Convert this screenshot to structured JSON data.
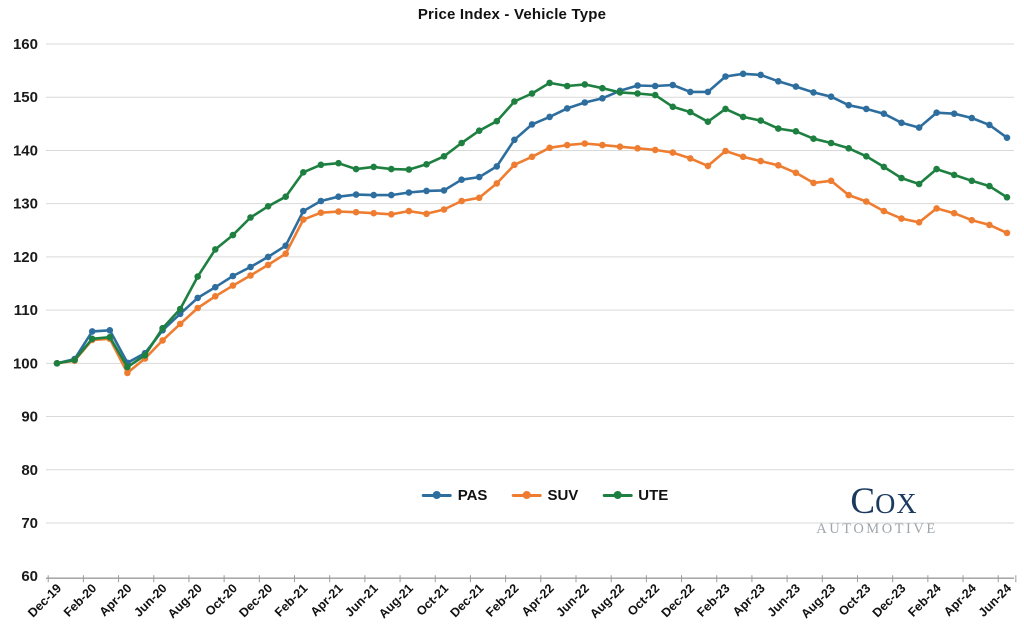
{
  "page": {
    "background": "#ffffff"
  },
  "chart_data": {
    "type": "line",
    "title": "Price Index - Vehicle Type",
    "x": [
      "Dec-19",
      "Jan-20",
      "Feb-20",
      "Mar-20",
      "Apr-20",
      "May-20",
      "Jun-20",
      "Jul-20",
      "Aug-20",
      "Sep-20",
      "Oct-20",
      "Nov-20",
      "Dec-20",
      "Jan-21",
      "Feb-21",
      "Mar-21",
      "Apr-21",
      "May-21",
      "Jun-21",
      "Jul-21",
      "Aug-21",
      "Sep-21",
      "Oct-21",
      "Nov-21",
      "Dec-21",
      "Jan-22",
      "Feb-22",
      "Mar-22",
      "Apr-22",
      "May-22",
      "Jun-22",
      "Jul-22",
      "Aug-22",
      "Sep-22",
      "Oct-22",
      "Nov-22",
      "Dec-22",
      "Jan-23",
      "Feb-23",
      "Mar-23",
      "Apr-23",
      "May-23",
      "Jun-23",
      "Jul-23",
      "Aug-23",
      "Sep-23",
      "Oct-23",
      "Nov-23",
      "Dec-23",
      "Jan-24",
      "Feb-24",
      "Mar-24",
      "Apr-24",
      "May-24",
      "Jun-24"
    ],
    "x_label_every": 2,
    "x_tick_labels_shown": [
      "Dec-19",
      "Feb-20",
      "Apr-20",
      "Jun-20",
      "Aug-20",
      "Oct-20",
      "Dec-20",
      "Feb-21",
      "Apr-21",
      "Jun-21",
      "Aug-21",
      "Oct-21",
      "Dec-21",
      "Feb-22",
      "Apr-22",
      "Jun-22",
      "Aug-22",
      "Oct-22",
      "Dec-22",
      "Feb-23",
      "Apr-23",
      "Jun-23",
      "Aug-23",
      "Oct-23",
      "Dec-23",
      "Feb-24",
      "Apr-24",
      "Jun-24"
    ],
    "series": [
      {
        "name": "PAS",
        "color": "#2d6e9e",
        "values": [
          100,
          100.8,
          106.0,
          106.2,
          100.1,
          101.9,
          106.2,
          109.3,
          112.3,
          114.3,
          116.4,
          118.1,
          120.0,
          122.1,
          128.6,
          130.5,
          131.3,
          131.7,
          131.6,
          131.6,
          132.1,
          132.4,
          132.5,
          134.5,
          135.0,
          137.0,
          142.0,
          144.9,
          146.3,
          147.9,
          149.0,
          149.8,
          151.2,
          152.2,
          152.1,
          152.3,
          151.0,
          151.0,
          153.9,
          154.4,
          154.2,
          153.0,
          152.0,
          150.9,
          150.1,
          148.5,
          147.8,
          146.9,
          145.2,
          144.3,
          147.1,
          146.9,
          146.1,
          144.8,
          142.4
        ]
      },
      {
        "name": "SUV",
        "color": "#ee7d31",
        "values": [
          100,
          100.5,
          104.4,
          104.6,
          98.2,
          100.9,
          104.3,
          107.4,
          110.4,
          112.6,
          114.6,
          116.5,
          118.5,
          120.6,
          127.0,
          128.3,
          128.5,
          128.4,
          128.2,
          128.0,
          128.6,
          128.1,
          128.9,
          130.5,
          131.1,
          133.8,
          137.3,
          138.8,
          140.5,
          141.0,
          141.3,
          141.0,
          140.7,
          140.4,
          140.1,
          139.6,
          138.5,
          137.1,
          139.9,
          138.8,
          138.0,
          137.2,
          135.8,
          133.9,
          134.3,
          131.6,
          130.4,
          128.6,
          127.2,
          126.5,
          129.1,
          128.2,
          126.9,
          126.0,
          124.5
        ]
      },
      {
        "name": "UTE",
        "color": "#1e8040",
        "values": [
          100,
          100.6,
          104.6,
          104.9,
          99.3,
          101.5,
          106.6,
          110.2,
          116.3,
          121.4,
          124.1,
          127.4,
          129.5,
          131.3,
          135.9,
          137.3,
          137.6,
          136.5,
          136.9,
          136.5,
          136.4,
          137.4,
          138.9,
          141.4,
          143.7,
          145.5,
          149.2,
          150.7,
          152.7,
          152.1,
          152.4,
          151.7,
          150.9,
          150.7,
          150.4,
          148.2,
          147.2,
          145.4,
          147.8,
          146.3,
          145.6,
          144.1,
          143.6,
          142.2,
          141.4,
          140.4,
          138.9,
          136.9,
          134.8,
          133.7,
          136.5,
          135.4,
          134.3,
          133.3,
          131.2
        ]
      }
    ],
    "ylim": [
      60,
      160
    ],
    "y_ticks": [
      60,
      70,
      80,
      90,
      100,
      110,
      120,
      130,
      140,
      150,
      160
    ],
    "grid": "horizontal",
    "legend_position": "bottom-center",
    "marker": "circle"
  },
  "branding": {
    "logo_c": "C",
    "logo_ox": "OX",
    "logo_sub": "AUTOMOTIVE"
  }
}
